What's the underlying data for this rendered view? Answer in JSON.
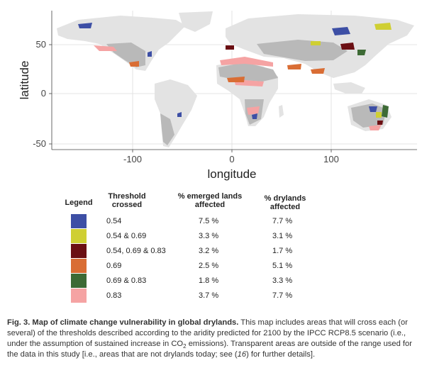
{
  "map": {
    "xlabel": "longitude",
    "ylabel": "latitude",
    "x_ticks": [
      "-100",
      "0",
      "100"
    ],
    "y_ticks": [
      "50",
      "0",
      "-50"
    ],
    "colors": {
      "background": "#ffffff",
      "land_outside_range": "#e3e3e3",
      "drylands_no_threshold": "#b9b9b9",
      "grid": "#d9d9d9"
    }
  },
  "legend": {
    "title": "Legend",
    "headers": {
      "threshold": [
        "Threshold",
        "crossed"
      ],
      "emerged": [
        "% emerged lands",
        "affected"
      ],
      "drylands": [
        "% drylands",
        "affected"
      ]
    },
    "rows": [
      {
        "color": "#3d4fa5",
        "threshold": "0.54",
        "emerged": "7.5 %",
        "drylands": "7.7 %"
      },
      {
        "color": "#cfcf33",
        "threshold": "0.54 & 0.69",
        "emerged": "3.3 %",
        "drylands": "3.1 %"
      },
      {
        "color": "#6b0f13",
        "threshold": "0.54, 0.69 & 0.83",
        "emerged": "3.2 %",
        "drylands": "1.7 %"
      },
      {
        "color": "#d96d34",
        "threshold": "0.69",
        "emerged": "2.5 %",
        "drylands": "5.1 %"
      },
      {
        "color": "#3d6a35",
        "threshold": "0.69 & 0.83",
        "emerged": "1.8 %",
        "drylands": "3.3 %"
      },
      {
        "color": "#f5a3a3",
        "threshold": "0.83",
        "emerged": "3.7 %",
        "drylands": "7.7 %"
      }
    ]
  },
  "caption": {
    "bold": "Fig. 3. Map of climate change vulnerability in global drylands.",
    "text_1": " This map includes areas that will cross each (or several) of the thresholds described according to the aridity predicted for 2100 by the IPCC RCP8.5 scenario (i.e., under the assumption of sustained increase in CO",
    "sub": "2",
    "text_2": " emissions). Transparent areas are outside of the range used for the data in this study [i.e., areas that are not drylands today; see (",
    "ref": "16",
    "text_3": ") for further details]."
  }
}
